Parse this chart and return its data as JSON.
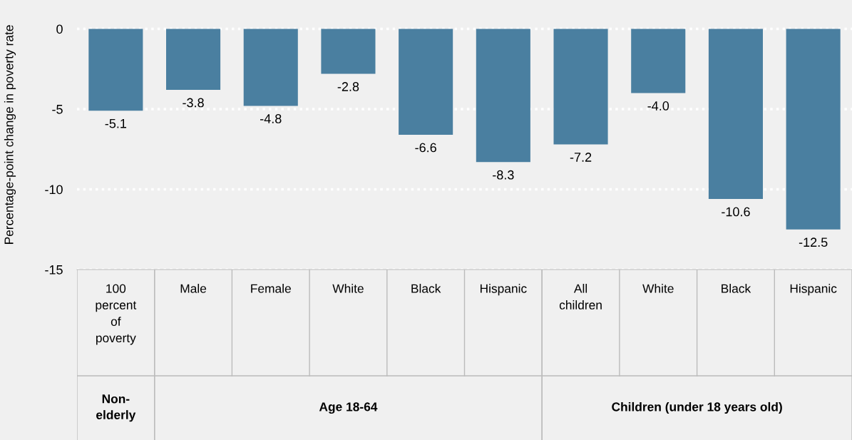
{
  "chart_data": {
    "type": "bar",
    "ylabel": "Percentage-point change in poverty rate",
    "categories": [
      "100 percent of poverty",
      "Male",
      "Female",
      "White",
      "Black",
      "Hispanic",
      "All children",
      "White",
      "Black",
      "Hispanic"
    ],
    "values": [
      -5.1,
      -3.8,
      -4.8,
      -2.8,
      -6.6,
      -8.3,
      -7.2,
      -4.0,
      -10.6,
      -12.5
    ],
    "value_labels": [
      "-5.1",
      "-3.8",
      "-4.8",
      "-2.8",
      "-6.6",
      "-8.3",
      "-7.2",
      "-4.0",
      "-10.6",
      "-12.5"
    ],
    "color": "#4a7fa0",
    "ylim": [
      -15,
      1.8
    ],
    "yticks": [
      0,
      -5,
      -10,
      -15
    ],
    "grid": "y",
    "annotations": [
      "Non-elderly",
      "Age 18-64",
      "Children (under 18 years old)"
    ]
  }
}
